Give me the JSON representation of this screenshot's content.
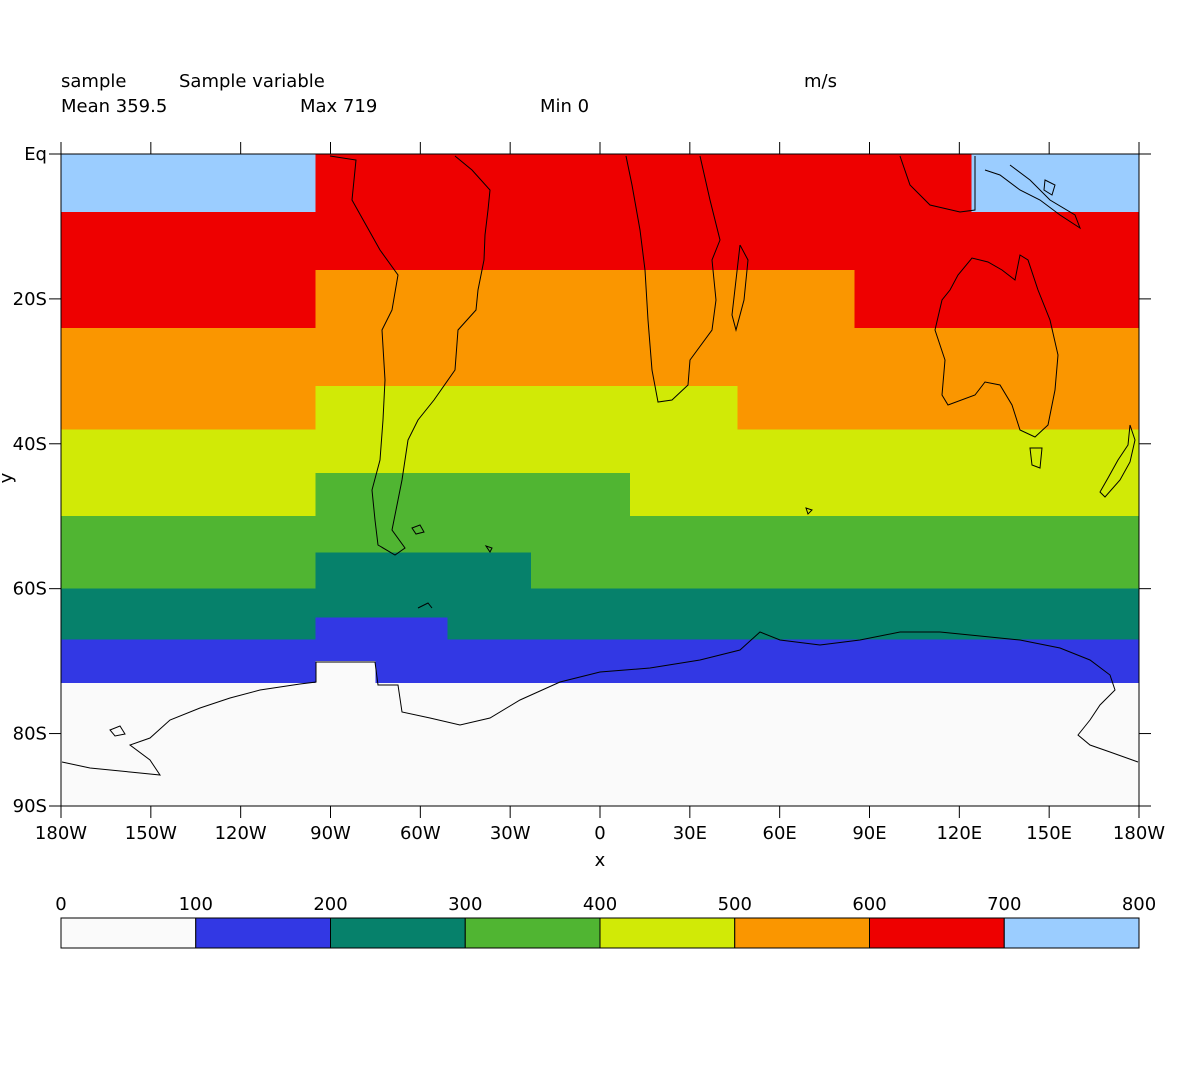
{
  "header": {
    "name": "sample",
    "long_name": "Sample variable",
    "units": "m/s",
    "mean": "Mean 359.5",
    "max": "Max 719",
    "min": "Min 0"
  },
  "axes": {
    "xlabel": "x",
    "ylabel": "y",
    "x_ticks": [
      {
        "lon": -180,
        "label": "180W"
      },
      {
        "lon": -150,
        "label": "150W"
      },
      {
        "lon": -120,
        "label": "120W"
      },
      {
        "lon": -90,
        "label": "90W"
      },
      {
        "lon": -60,
        "label": "60W"
      },
      {
        "lon": -30,
        "label": "30W"
      },
      {
        "lon": 0,
        "label": "0"
      },
      {
        "lon": 30,
        "label": "30E"
      },
      {
        "lon": 60,
        "label": "60E"
      },
      {
        "lon": 90,
        "label": "90E"
      },
      {
        "lon": 120,
        "label": "120E"
      },
      {
        "lon": 150,
        "label": "150E"
      },
      {
        "lon": 180,
        "label": "180W"
      }
    ],
    "y_ticks": [
      {
        "lat": 0,
        "label": "Eq"
      },
      {
        "lat": -20,
        "label": "20S"
      },
      {
        "lat": -40,
        "label": "40S"
      },
      {
        "lat": -60,
        "label": "60S"
      },
      {
        "lat": -80,
        "label": "80S"
      },
      {
        "lat": -90,
        "label": "90S"
      }
    ],
    "x_range": [
      -180,
      180
    ],
    "y_range": [
      -90,
      0
    ]
  },
  "colorbar": {
    "levels": [
      "0",
      "100",
      "200",
      "300",
      "400",
      "500",
      "600",
      "700",
      "800"
    ],
    "colors": [
      "#fafafa",
      "#3238e4",
      "#06816b",
      "#50b532",
      "#d1ea06",
      "#fa9600",
      "#ee0000",
      "#9bcdff"
    ]
  },
  "chart_data": {
    "type": "heatmap",
    "description_units": "m/s",
    "cells": [
      {
        "lon": [
          -180,
          -95
        ],
        "lat": [
          0,
          -8
        ],
        "value": 750
      },
      {
        "lon": [
          -95,
          124
        ],
        "lat": [
          0,
          -8
        ],
        "value": 650
      },
      {
        "lon": [
          124,
          180
        ],
        "lat": [
          0,
          -8
        ],
        "value": 750
      },
      {
        "lon": [
          -180,
          180
        ],
        "lat": [
          -8,
          -16
        ],
        "value": 650
      },
      {
        "lon": [
          -180,
          -95
        ],
        "lat": [
          -16,
          -24
        ],
        "value": 650
      },
      {
        "lon": [
          -95,
          85
        ],
        "lat": [
          -16,
          -24
        ],
        "value": 550
      },
      {
        "lon": [
          85,
          180
        ],
        "lat": [
          -16,
          -24
        ],
        "value": 650
      },
      {
        "lon": [
          -180,
          180
        ],
        "lat": [
          -24,
          -32
        ],
        "value": 550
      },
      {
        "lon": [
          -180,
          -95
        ],
        "lat": [
          -32,
          -38
        ],
        "value": 550
      },
      {
        "lon": [
          -95,
          46
        ],
        "lat": [
          -32,
          -38
        ],
        "value": 450
      },
      {
        "lon": [
          46,
          180
        ],
        "lat": [
          -32,
          -38
        ],
        "value": 550
      },
      {
        "lon": [
          -180,
          180
        ],
        "lat": [
          -38,
          -44
        ],
        "value": 450
      },
      {
        "lon": [
          -180,
          -95
        ],
        "lat": [
          -44,
          -50
        ],
        "value": 450
      },
      {
        "lon": [
          -95,
          10
        ],
        "lat": [
          -44,
          -50
        ],
        "value": 350
      },
      {
        "lon": [
          10,
          180
        ],
        "lat": [
          -44,
          -50
        ],
        "value": 450
      },
      {
        "lon": [
          -180,
          180
        ],
        "lat": [
          -50,
          -55
        ],
        "value": 350
      },
      {
        "lon": [
          -180,
          -95
        ],
        "lat": [
          -55,
          -60
        ],
        "value": 350
      },
      {
        "lon": [
          -95,
          -23
        ],
        "lat": [
          -55,
          -60
        ],
        "value": 250
      },
      {
        "lon": [
          -23,
          180
        ],
        "lat": [
          -55,
          -60
        ],
        "value": 350
      },
      {
        "lon": [
          -180,
          180
        ],
        "lat": [
          -60,
          -64
        ],
        "value": 250
      },
      {
        "lon": [
          -180,
          -95
        ],
        "lat": [
          -64,
          -67
        ],
        "value": 250
      },
      {
        "lon": [
          -95,
          -51
        ],
        "lat": [
          -64,
          -67
        ],
        "value": 150
      },
      {
        "lon": [
          -51,
          180
        ],
        "lat": [
          -64,
          -67
        ],
        "value": 250
      },
      {
        "lon": [
          -180,
          180
        ],
        "lat": [
          -67,
          -70
        ],
        "value": 150
      },
      {
        "lon": [
          -180,
          -95
        ],
        "lat": [
          -70,
          -73
        ],
        "value": 150
      },
      {
        "lon": [
          -95,
          -75
        ],
        "lat": [
          -70,
          -73
        ],
        "value": 50
      },
      {
        "lon": [
          -75,
          180
        ],
        "lat": [
          -70,
          -73
        ],
        "value": 150
      },
      {
        "lon": [
          -180,
          180
        ],
        "lat": [
          -73,
          -90
        ],
        "value": 50
      }
    ]
  }
}
